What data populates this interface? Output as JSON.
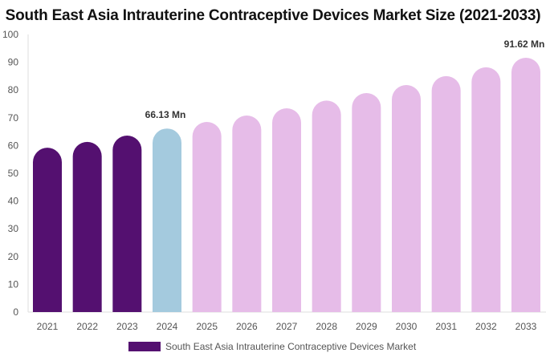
{
  "chart_data": {
    "type": "bar",
    "title": "South East Asia Intrauterine Contraceptive Devices Market Size (2021-2033)",
    "categories": [
      "2021",
      "2022",
      "2023",
      "2024",
      "2025",
      "2026",
      "2027",
      "2028",
      "2029",
      "2030",
      "2031",
      "2032",
      "2033"
    ],
    "series": [
      {
        "name": "South East Asia Intrauterine Contraceptive Devices Market",
        "values": [
          59.2,
          61.3,
          63.6,
          66.13,
          68.5,
          70.8,
          73.4,
          76.2,
          78.9,
          81.8,
          85.0,
          88.2,
          91.62
        ]
      }
    ],
    "data_labels": [
      {
        "category": "2024",
        "text": "66.13 Mn"
      },
      {
        "category": "2033",
        "text": "91.62 Mn"
      }
    ],
    "yticks": [
      0,
      10,
      20,
      30,
      40,
      50,
      60,
      70,
      80,
      90,
      100
    ],
    "ylim": [
      0,
      100
    ],
    "xlabel": "",
    "ylabel": "",
    "grid": false,
    "legend": "bottom",
    "colors": {
      "historical": "#541070",
      "current": "#a4cade",
      "forecast": "#e6bce8"
    }
  }
}
